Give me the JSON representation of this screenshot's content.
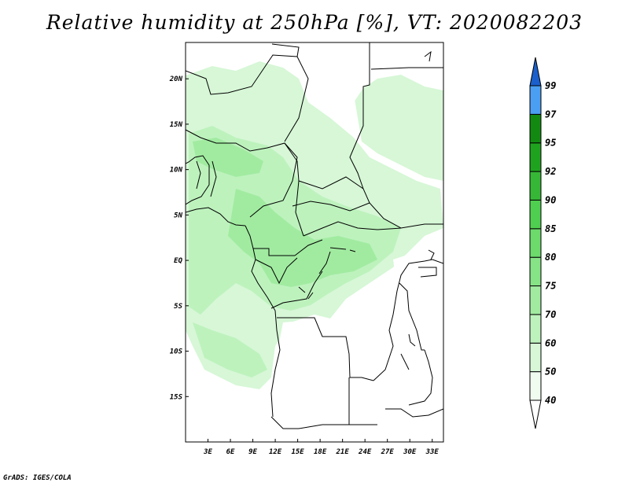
{
  "title": "Relative humidity at 250hPa [%], VT: 2020082203",
  "credit": "GrADS: IGES/COLA",
  "map": {
    "lon_range": [
      0,
      34.5
    ],
    "lat_range": [
      -20,
      24
    ],
    "lon_ticks": [
      {
        "value": 3,
        "label": "3E"
      },
      {
        "value": 6,
        "label": "6E"
      },
      {
        "value": 9,
        "label": "9E"
      },
      {
        "value": 12,
        "label": "12E"
      },
      {
        "value": 15,
        "label": "15E"
      },
      {
        "value": 18,
        "label": "18E"
      },
      {
        "value": 21,
        "label": "21E"
      },
      {
        "value": 24,
        "label": "24E"
      },
      {
        "value": 27,
        "label": "27E"
      },
      {
        "value": 30,
        "label": "30E"
      },
      {
        "value": 33,
        "label": "33E"
      }
    ],
    "lat_ticks": [
      {
        "value": 20,
        "label": "20N"
      },
      {
        "value": 15,
        "label": "15N"
      },
      {
        "value": 10,
        "label": "10N"
      },
      {
        "value": 5,
        "label": "5N"
      },
      {
        "value": 0,
        "label": "EQ"
      },
      {
        "value": -5,
        "label": "5S"
      },
      {
        "value": -10,
        "label": "10S"
      },
      {
        "value": -15,
        "label": "15S"
      }
    ]
  },
  "colorbar": {
    "levels": [
      {
        "label": "40",
        "color": "#f0fcf0"
      },
      {
        "label": "50",
        "color": "#d7f7d7"
      },
      {
        "label": "60",
        "color": "#bdf2bd"
      },
      {
        "label": "70",
        "color": "#a1eba1"
      },
      {
        "label": "75",
        "color": "#86e386"
      },
      {
        "label": "80",
        "color": "#6cdb6c"
      },
      {
        "label": "85",
        "color": "#4fcf4f"
      },
      {
        "label": "90",
        "color": "#36b836"
      },
      {
        "label": "92",
        "color": "#1fa31f"
      },
      {
        "label": "95",
        "color": "#128a12"
      },
      {
        "label": "97",
        "color": "#4a9ff2"
      },
      {
        "label": "99",
        "color": "#2b78e0"
      }
    ],
    "top_color": "#1a5fcc",
    "bottom_color": "#ffffff"
  }
}
